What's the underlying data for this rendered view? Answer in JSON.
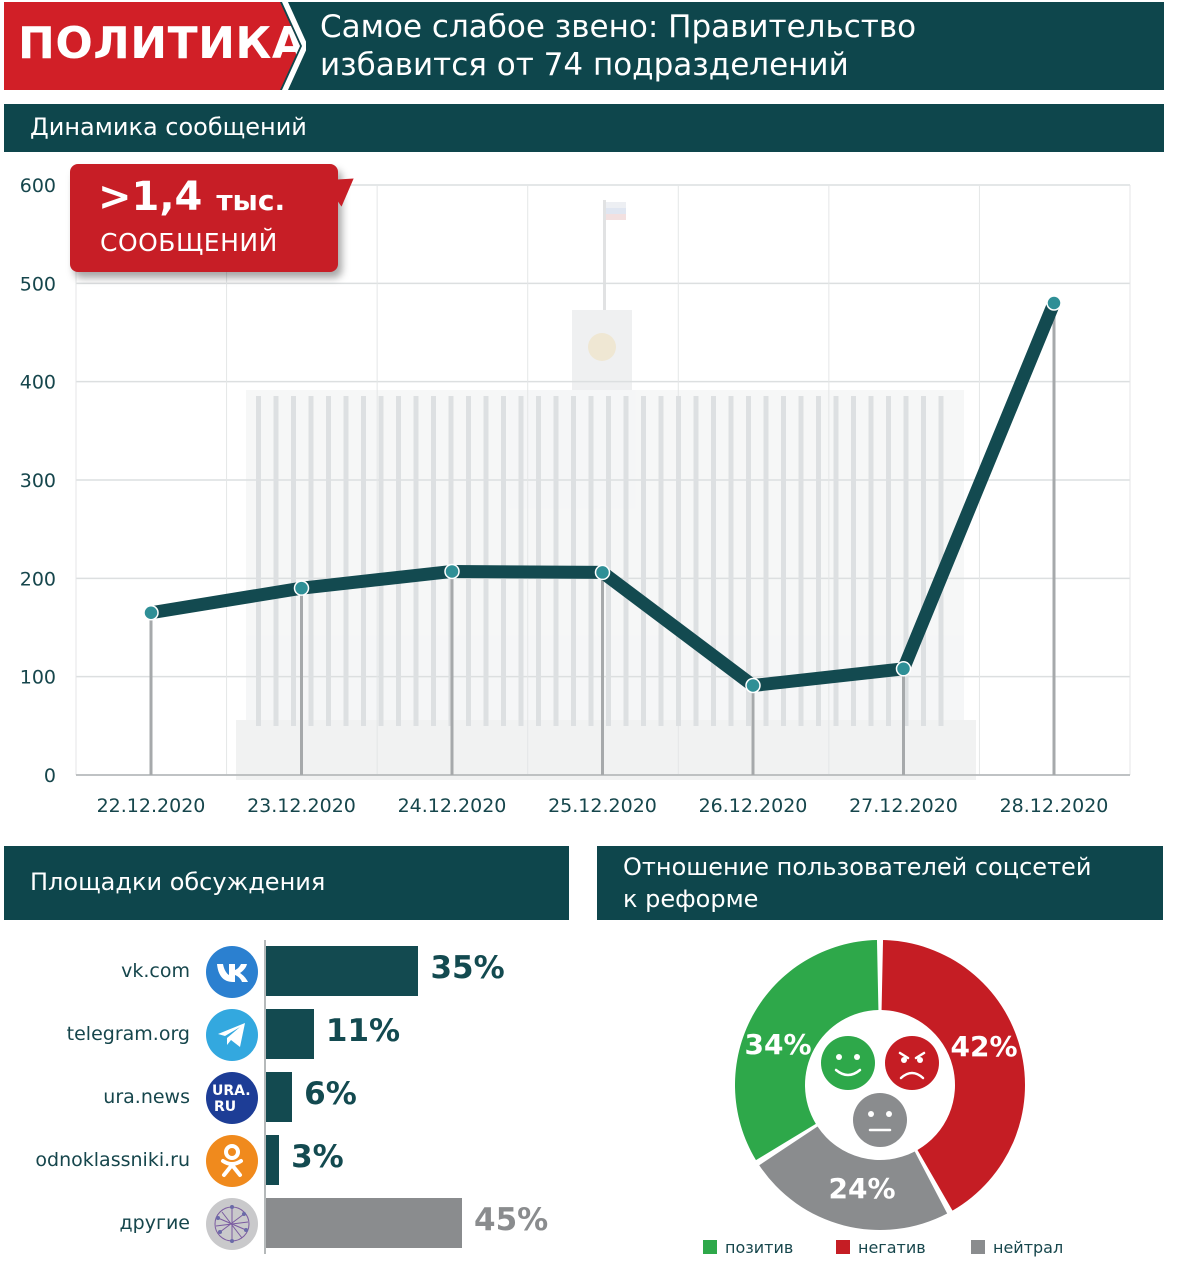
{
  "banner": {
    "rubric": "ПОЛИТИКА",
    "headline_line1": "Самое слабое звено: Правительство",
    "headline_line2": "избавится от 74 подразделений",
    "colors": {
      "dark": "#0e464c",
      "red": "#d11f27"
    }
  },
  "sections": {
    "dynamics": "Динамика сообщений",
    "platforms": "Площадки обсуждения",
    "attitude_line1": "Отношение пользователей соцсетей",
    "attitude_line2": "к реформе"
  },
  "callout": {
    "value": ">1,4",
    "unit": "тыс.",
    "caption": "СООБЩЕНИЙ"
  },
  "chart_data": [
    {
      "type": "line",
      "x": [
        "22.12.2020",
        "23.12.2020",
        "24.12.2020",
        "25.12.2020",
        "26.12.2020",
        "27.12.2020",
        "28.12.2020"
      ],
      "values": [
        165,
        190,
        207,
        206,
        91,
        108,
        480
      ],
      "ylim": [
        0,
        600
      ],
      "yticks": [
        0,
        100,
        200,
        300,
        400,
        500,
        600
      ],
      "grid": true,
      "color": "#134a50"
    },
    {
      "type": "bar",
      "orientation": "horizontal",
      "categories": [
        "vk.com",
        "telegram.org",
        "ura.news",
        "odnoklassniki.ru",
        "другие"
      ],
      "values": [
        35,
        11,
        6,
        3,
        45
      ],
      "labels": [
        "35%",
        "11%",
        "6%",
        "3%",
        "45%"
      ],
      "icons": [
        "vk-icon",
        "telegram-icon",
        "ura-ru-icon",
        "odnoklassniki-icon",
        "network-icon"
      ],
      "colors": [
        "#134a50",
        "#134a50",
        "#134a50",
        "#134a50",
        "#8a8c8e"
      ]
    },
    {
      "type": "pie",
      "donut": true,
      "categories": [
        "позитив",
        "негатив",
        "нейтрал"
      ],
      "values": [
        34,
        42,
        24
      ],
      "labels": [
        "34%",
        "42%",
        "24%"
      ],
      "colors": [
        "#2ea84a",
        "#c51d24",
        "#8a8c8e"
      ],
      "icons": [
        "smile-icon",
        "angry-icon",
        "neutral-face-icon"
      ],
      "legend": "bottom"
    }
  ],
  "platform_icon_text": {
    "ura_line1": "URA.",
    "ura_line2": "RU"
  }
}
